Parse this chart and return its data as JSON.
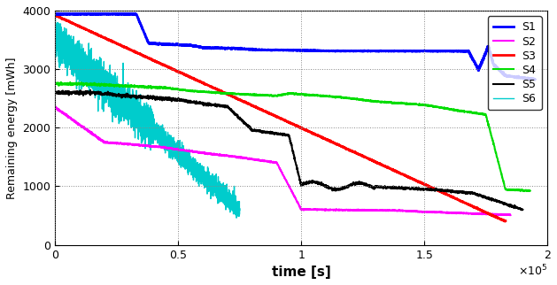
{
  "title": "",
  "xlabel": "time [s]",
  "ylabel": "Remaining energy [mWh]",
  "xlim": [
    0,
    200000
  ],
  "ylim": [
    0,
    4000
  ],
  "yticks": [
    0,
    1000,
    2000,
    3000,
    4000
  ],
  "xtick_labels": [
    "0",
    "0.5",
    "1",
    "1.5",
    "2"
  ],
  "xtick_positions": [
    0,
    50000,
    100000,
    150000,
    200000
  ],
  "series": [
    {
      "name": "S1",
      "color": "#0000FF",
      "linewidth": 2.0
    },
    {
      "name": "S2",
      "color": "#FF00FF",
      "linewidth": 1.5
    },
    {
      "name": "S3",
      "color": "#FF0000",
      "linewidth": 2.0
    },
    {
      "name": "S4",
      "color": "#00DD00",
      "linewidth": 1.5
    },
    {
      "name": "S5",
      "color": "#000000",
      "linewidth": 1.5
    },
    {
      "name": "S6",
      "color": "#00CCCC",
      "linewidth": 1.0
    }
  ],
  "legend_loc": "upper right",
  "grid": true
}
